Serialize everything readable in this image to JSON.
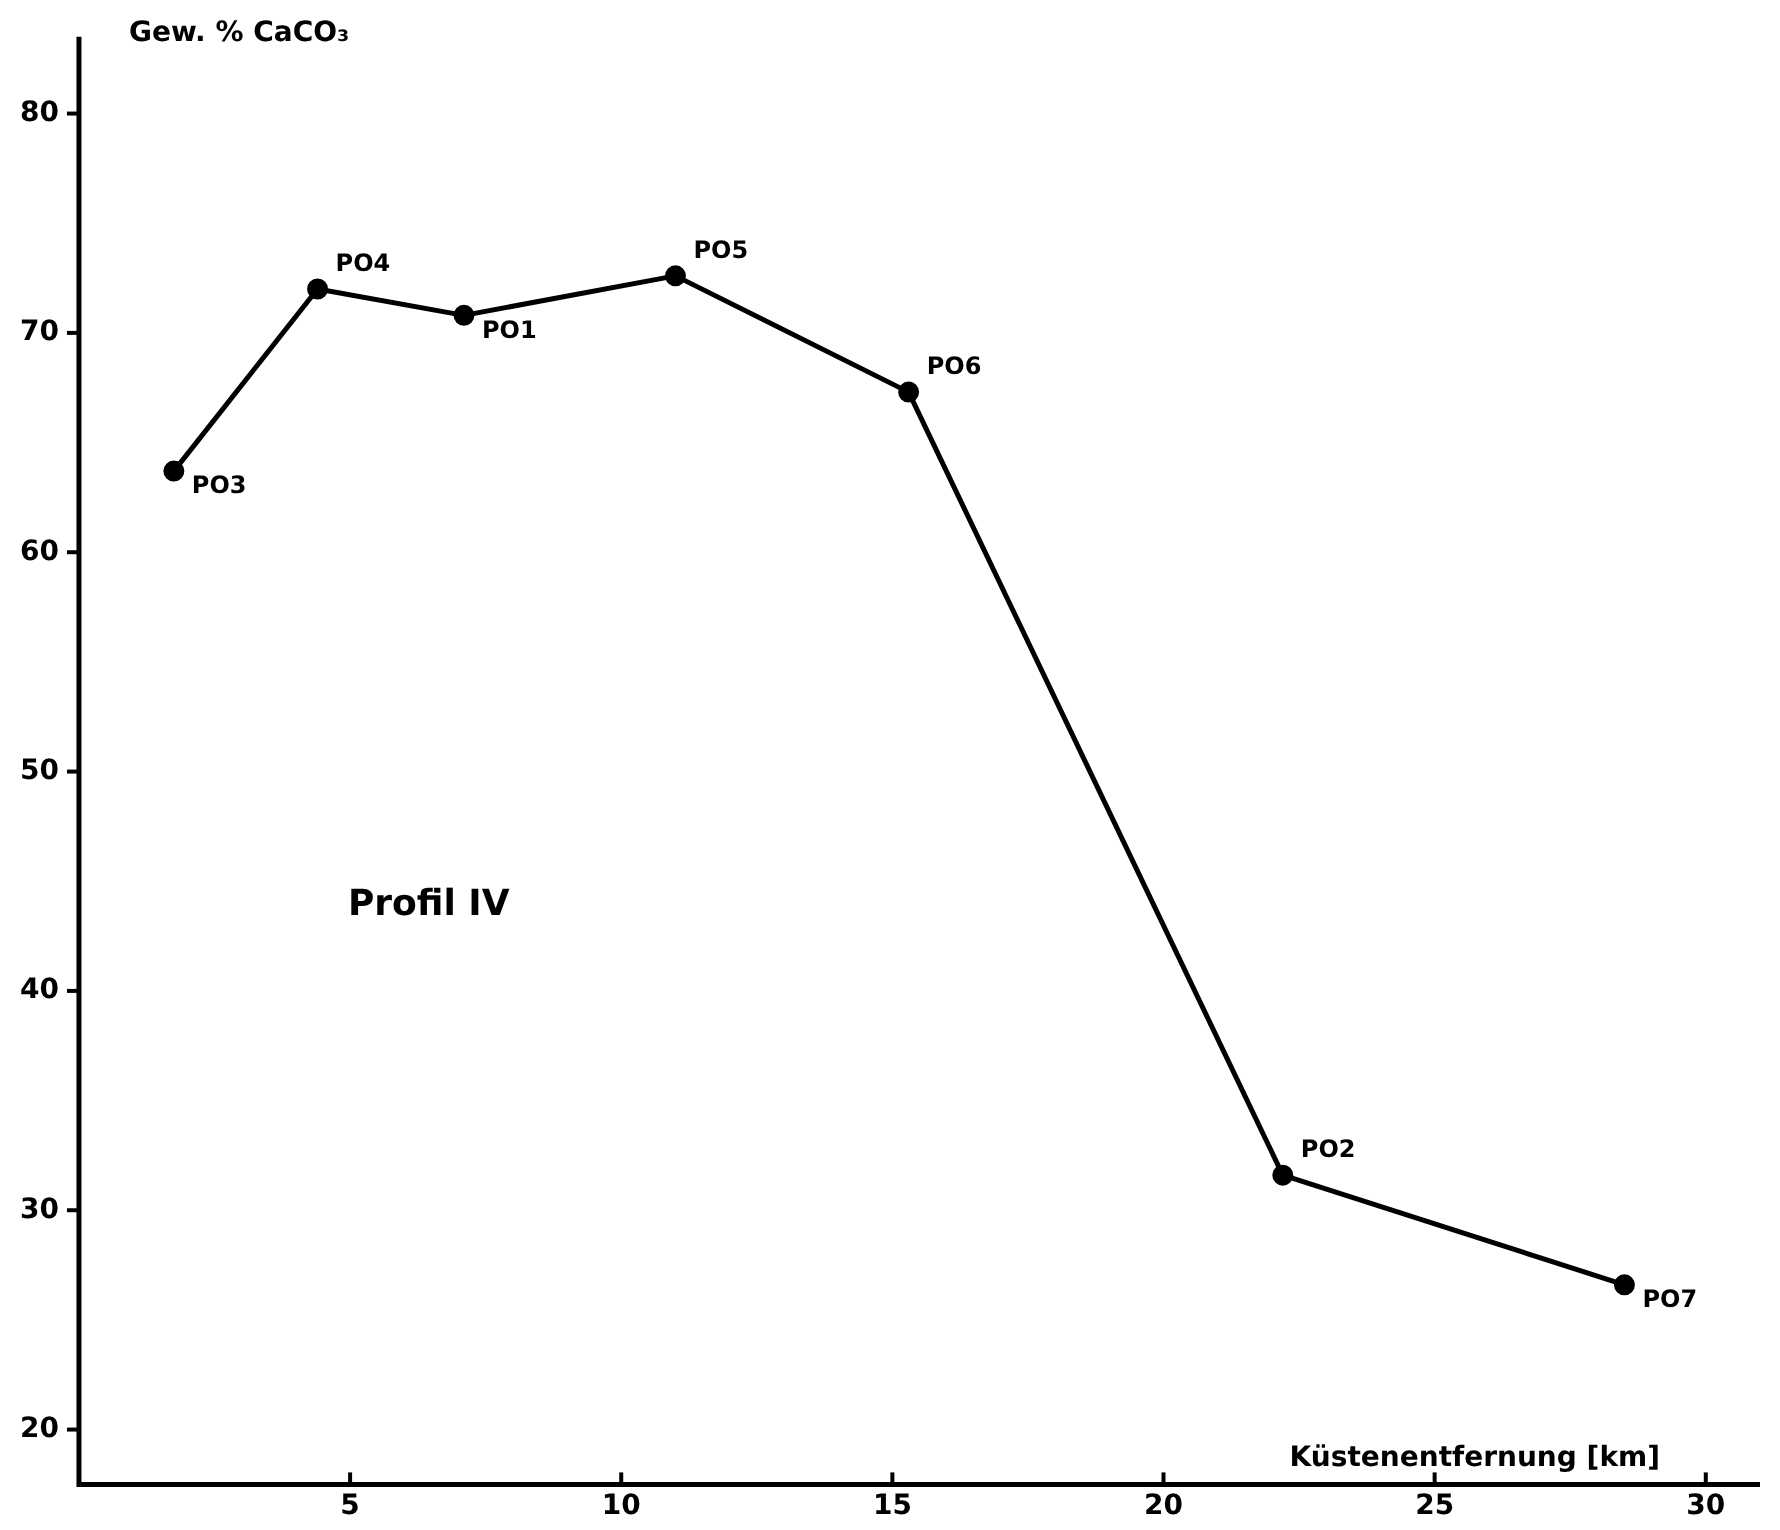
{
  "chart_data": {
    "type": "line",
    "xlabel": "Küstenentfernung [km]",
    "ylabel": "Gew. % CaCO₃",
    "x": [
      1.75,
      4.4,
      7.1,
      11.0,
      15.3,
      22.2,
      28.5
    ],
    "series": [
      {
        "color": "#000000",
        "values": [
          63.7,
          72.0,
          70.8,
          72.6,
          67.3,
          31.6,
          26.6
        ]
      }
    ],
    "xlim": [
      0,
      31
    ],
    "xticks": [
      5,
      10,
      15,
      20,
      25,
      30
    ],
    "ylim": [
      17.5,
      83.5
    ],
    "yticks": [
      20,
      30,
      40,
      50,
      60,
      70,
      80
    ],
    "grid": false,
    "legend": false,
    "marker": "circle",
    "line_style": "solid",
    "annotations": [
      {
        "text": "PO3",
        "x": 1.75,
        "y": 63.7
      },
      {
        "text": "PO4",
        "x": 4.4,
        "y": 72.0
      },
      {
        "text": "PO1",
        "x": 7.1,
        "y": 70.8
      },
      {
        "text": "PO5",
        "x": 11.0,
        "y": 72.6
      },
      {
        "text": "PO6",
        "x": 15.3,
        "y": 67.3
      },
      {
        "text": "PO2",
        "x": 22.2,
        "y": 31.6
      },
      {
        "text": "PO7",
        "x": 28.5,
        "y": 26.6
      },
      "Profil IV"
    ]
  }
}
